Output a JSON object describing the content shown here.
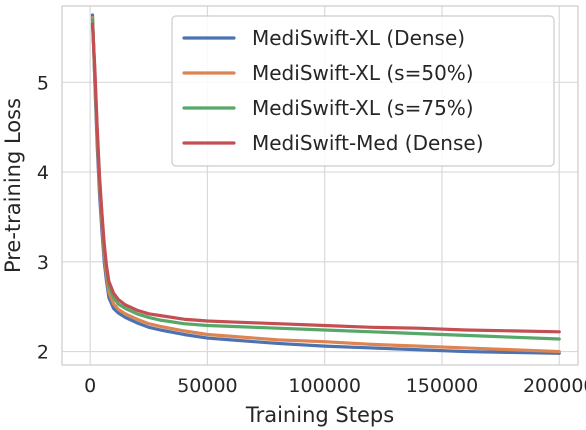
{
  "chart_data": {
    "type": "line",
    "title": "",
    "xlabel": "Training Steps",
    "ylabel": "Pre-training Loss",
    "xlim": [
      -12000,
      208000
    ],
    "ylim": [
      1.85,
      5.85
    ],
    "xticks": [
      0,
      50000,
      100000,
      150000,
      200000
    ],
    "xtick_labels": [
      "0",
      "50000",
      "100000",
      "150000",
      "200000"
    ],
    "yticks": [
      2,
      3,
      4,
      5
    ],
    "ytick_labels": [
      "2",
      "3",
      "4",
      "5"
    ],
    "grid": true,
    "legend_position": "top-right",
    "series": [
      {
        "name": "MediSwift-XL (Dense)",
        "color": "#4c72b0",
        "x": [
          1000,
          2000,
          3000,
          4000,
          5000,
          6000,
          7000,
          8000,
          10000,
          12000,
          15000,
          20000,
          25000,
          30000,
          40000,
          50000,
          60000,
          70000,
          80000,
          100000,
          120000,
          140000,
          160000,
          180000,
          200000
        ],
        "y": [
          5.75,
          5.0,
          4.3,
          3.75,
          3.35,
          3.0,
          2.78,
          2.6,
          2.48,
          2.43,
          2.38,
          2.32,
          2.27,
          2.24,
          2.19,
          2.15,
          2.13,
          2.11,
          2.09,
          2.06,
          2.04,
          2.02,
          2.0,
          1.99,
          1.98
        ]
      },
      {
        "name": "MediSwift-XL (s=50%)",
        "color": "#dd8452",
        "x": [
          1000,
          2000,
          3000,
          4000,
          5000,
          6000,
          7000,
          8000,
          10000,
          12000,
          15000,
          20000,
          25000,
          30000,
          40000,
          50000,
          60000,
          70000,
          80000,
          100000,
          120000,
          140000,
          160000,
          180000,
          200000
        ],
        "y": [
          5.72,
          5.05,
          4.4,
          3.85,
          3.45,
          3.08,
          2.85,
          2.66,
          2.53,
          2.47,
          2.42,
          2.36,
          2.31,
          2.28,
          2.23,
          2.19,
          2.17,
          2.15,
          2.13,
          2.11,
          2.08,
          2.06,
          2.04,
          2.02,
          2.0
        ]
      },
      {
        "name": "MediSwift-XL (s=75%)",
        "color": "#55a868",
        "x": [
          1000,
          2000,
          3000,
          4000,
          5000,
          6000,
          7000,
          8000,
          10000,
          12000,
          15000,
          20000,
          25000,
          30000,
          40000,
          50000,
          60000,
          70000,
          80000,
          100000,
          120000,
          140000,
          160000,
          180000,
          200000
        ],
        "y": [
          5.7,
          5.1,
          4.45,
          3.92,
          3.52,
          3.15,
          2.92,
          2.73,
          2.6,
          2.53,
          2.48,
          2.42,
          2.38,
          2.35,
          2.31,
          2.29,
          2.28,
          2.27,
          2.26,
          2.24,
          2.22,
          2.2,
          2.18,
          2.16,
          2.14
        ]
      },
      {
        "name": "MediSwift-Med (Dense)",
        "color": "#c44e52",
        "x": [
          1000,
          2000,
          3000,
          4000,
          5000,
          6000,
          7000,
          8000,
          10000,
          12000,
          15000,
          20000,
          25000,
          30000,
          40000,
          50000,
          60000,
          70000,
          80000,
          100000,
          120000,
          140000,
          160000,
          180000,
          200000
        ],
        "y": [
          5.65,
          5.15,
          4.5,
          3.95,
          3.55,
          3.2,
          2.95,
          2.78,
          2.65,
          2.58,
          2.52,
          2.46,
          2.42,
          2.4,
          2.36,
          2.34,
          2.33,
          2.32,
          2.31,
          2.29,
          2.27,
          2.26,
          2.24,
          2.23,
          2.22
        ]
      }
    ]
  }
}
